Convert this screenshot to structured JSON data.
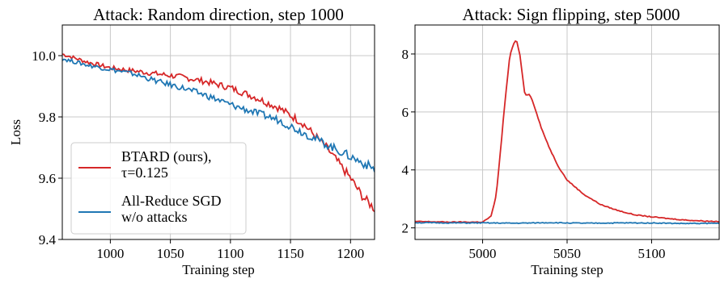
{
  "colors": {
    "btard": "#d62728",
    "sgd": "#1f77b4"
  },
  "chart_data": [
    {
      "type": "line",
      "title": "Attack: Random direction, step 1000",
      "xlabel": "Training step",
      "ylabel": "Loss",
      "xlim": [
        960,
        1220
      ],
      "ylim": [
        9.4,
        10.1
      ],
      "xticks": [
        "1000",
        "1050",
        "1100",
        "1150",
        "1200"
      ],
      "yticks": [
        "9.4",
        "9.6",
        "9.8",
        "10.0"
      ],
      "xtick_values": [
        1000,
        1050,
        1100,
        1150,
        1200
      ],
      "ytick_values": [
        9.4,
        9.6,
        9.8,
        10.0
      ],
      "grid": true,
      "legend": {
        "placement": "lower-left",
        "entries": [
          {
            "lines": [
              "BTARD (ours),",
              "τ=0.125"
            ],
            "color": "#d62728"
          },
          {
            "lines": [
              "All-Reduce SGD",
              "w/o attacks"
            ],
            "color": "#1f77b4"
          }
        ]
      },
      "series": [
        {
          "color": "#d62728",
          "x": [
            960,
            980,
            1000,
            1020,
            1040,
            1060,
            1080,
            1100,
            1120,
            1140,
            1160,
            1170,
            1180,
            1190,
            1200,
            1210,
            1220
          ],
          "y": [
            10.005,
            9.98,
            9.96,
            9.95,
            9.94,
            9.93,
            9.915,
            9.895,
            9.865,
            9.83,
            9.78,
            9.74,
            9.7,
            9.65,
            9.6,
            9.54,
            9.5
          ]
        },
        {
          "color": "#1f77b4",
          "x": [
            960,
            980,
            1000,
            1020,
            1040,
            1060,
            1080,
            1100,
            1120,
            1140,
            1160,
            1180,
            1200,
            1220
          ],
          "y": [
            9.99,
            9.97,
            9.955,
            9.94,
            9.915,
            9.895,
            9.87,
            9.84,
            9.815,
            9.79,
            9.75,
            9.71,
            9.67,
            9.63
          ]
        }
      ]
    },
    {
      "type": "line",
      "title": "Attack: Sign flipping, step 5000",
      "xlabel": "Training step",
      "ylabel": "",
      "xlim": [
        4960,
        5140
      ],
      "ylim": [
        1.6,
        9.0
      ],
      "xticks": [
        "5000",
        "5050",
        "5100"
      ],
      "yticks": [
        "2",
        "4",
        "6",
        "8"
      ],
      "xtick_values": [
        5000,
        5050,
        5100
      ],
      "ytick_values": [
        2,
        4,
        6,
        8
      ],
      "grid": true,
      "series": [
        {
          "color": "#d62728",
          "x": [
            4960,
            4980,
            5000,
            5005,
            5008,
            5010,
            5013,
            5016,
            5018,
            5020,
            5022,
            5025,
            5028,
            5030,
            5035,
            5040,
            5045,
            5050,
            5060,
            5070,
            5080,
            5090,
            5100,
            5110,
            5120,
            5130,
            5140
          ],
          "y": [
            2.22,
            2.2,
            2.2,
            2.4,
            3.1,
            4.3,
            6.2,
            7.9,
            8.3,
            8.5,
            8.0,
            6.6,
            6.6,
            6.3,
            5.4,
            4.7,
            4.1,
            3.65,
            3.15,
            2.8,
            2.6,
            2.45,
            2.38,
            2.32,
            2.27,
            2.24,
            2.22
          ]
        },
        {
          "color": "#1f77b4",
          "x": [
            4960,
            4980,
            5000,
            5020,
            5040,
            5060,
            5080,
            5100,
            5120,
            5140
          ],
          "y": [
            2.18,
            2.17,
            2.17,
            2.16,
            2.18,
            2.16,
            2.17,
            2.17,
            2.15,
            2.16
          ]
        }
      ]
    }
  ]
}
